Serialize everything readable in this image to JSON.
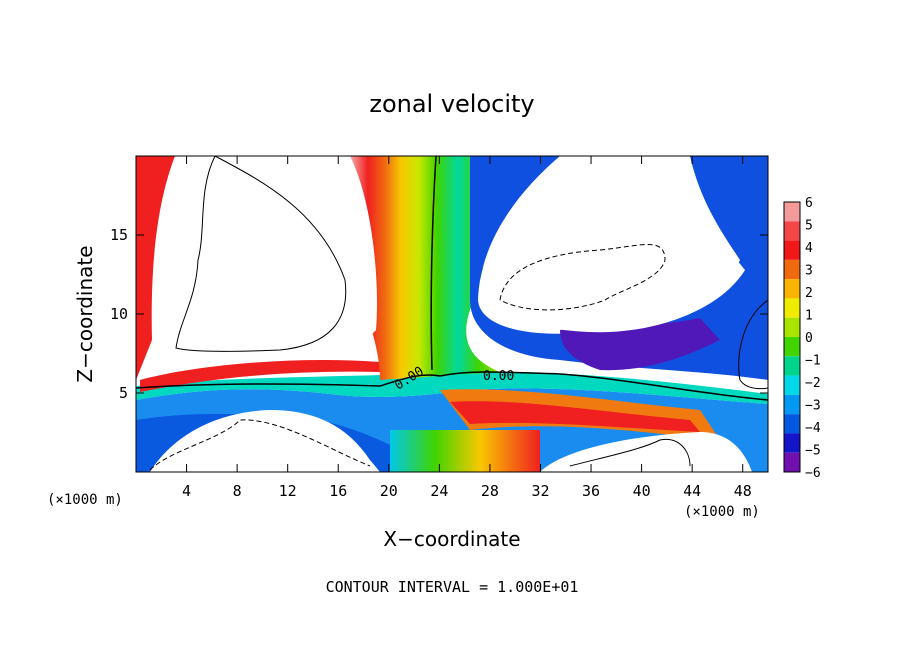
{
  "chart_data": {
    "type": "heatmap",
    "title": "zonal velocity",
    "xlabel": "X−coordinate",
    "ylabel": "Z−coordinate",
    "x_unit_label": "(×1000 m)",
    "footer": "CONTOUR INTERVAL = 1.000E+01",
    "xlim": [
      0,
      50
    ],
    "ylim": [
      0,
      20
    ],
    "x_ticks": [
      4,
      8,
      12,
      16,
      20,
      24,
      28,
      32,
      36,
      40,
      44,
      48
    ],
    "y_ticks": [
      5,
      10,
      15
    ],
    "colorbar": {
      "ticks": [
        6,
        5,
        4,
        3,
        2,
        1,
        0,
        -1,
        -2,
        -3,
        -4,
        -5,
        -6
      ],
      "colors": [
        "#f49a9a",
        "#f24848",
        "#f01818",
        "#f06a10",
        "#f8b400",
        "#f0ec00",
        "#a8e400",
        "#40d400",
        "#00d48c",
        "#00d8e8",
        "#0098f0",
        "#0058e0",
        "#1414c8",
        "#7010b0"
      ],
      "min": -6,
      "max": 6
    },
    "contour_labels": [
      "0.00",
      "0.00"
    ],
    "grid": false
  }
}
